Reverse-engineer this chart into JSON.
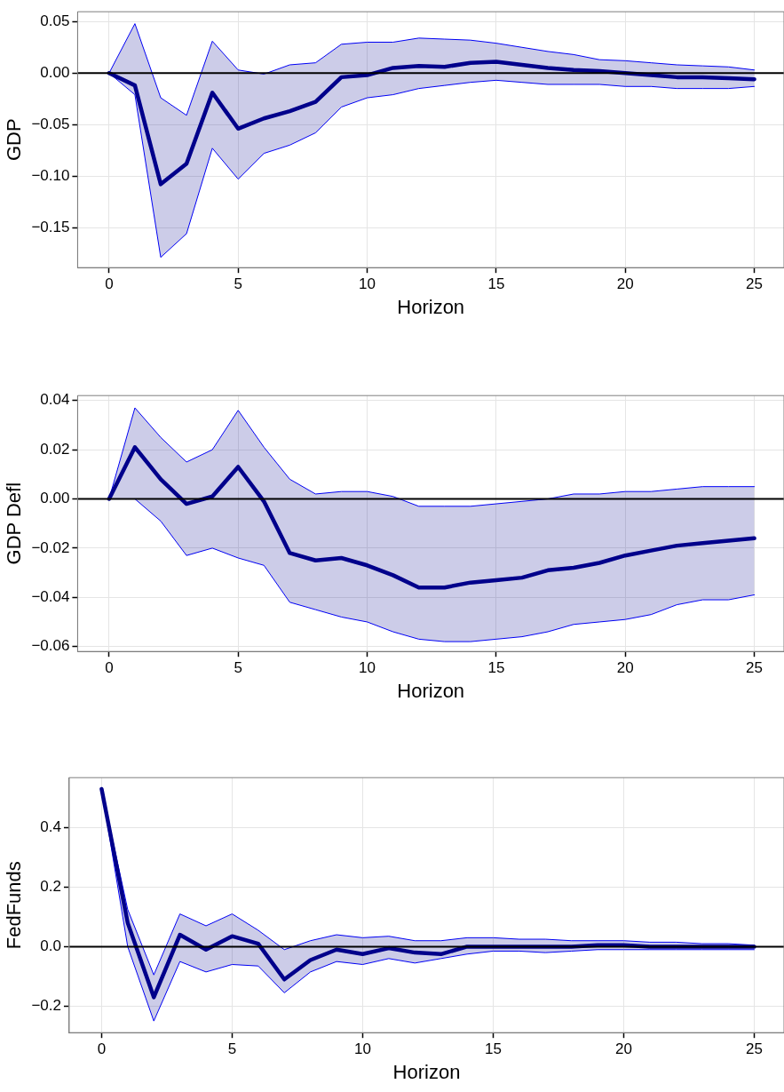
{
  "chart_data": [
    {
      "type": "line",
      "xlabel": "Horizon",
      "ylabel": "GDP",
      "x": [
        0,
        1,
        2,
        3,
        4,
        5,
        6,
        7,
        8,
        9,
        10,
        11,
        12,
        13,
        14,
        15,
        16,
        17,
        18,
        19,
        20,
        21,
        22,
        23,
        24,
        25
      ],
      "xlim": [
        -1.22,
        26.15
      ],
      "xticks": [
        0,
        5,
        10,
        15,
        20,
        25
      ],
      "ylim": [
        -0.189,
        0.0596
      ],
      "yticks": [
        {
          "value": 0.05,
          "label": "0.05"
        },
        {
          "value": 0,
          "label": "0.00"
        },
        {
          "value": -0.05,
          "label": "−0.05"
        },
        {
          "value": -0.1,
          "label": "−0.10"
        },
        {
          "value": -0.15,
          "label": "−0.15"
        }
      ],
      "grid": true,
      "legend": false,
      "ref_lines": [
        {
          "axis": "y",
          "value": 0,
          "color": "#000000"
        }
      ],
      "series": [
        {
          "color": "#00008b",
          "values": [
            0,
            -0.012,
            -0.108,
            -0.088,
            -0.019,
            -0.054,
            -0.044,
            -0.037,
            -0.028,
            -0.004,
            -0.002,
            0.005,
            0.007,
            0.006,
            0.01,
            0.011,
            0.008,
            0.005,
            0.003,
            0.002,
            0.0,
            -0.002,
            -0.004,
            -0.004,
            -0.005,
            -0.006
          ],
          "lower": [
            0,
            -0.021,
            -0.179,
            -0.156,
            -0.073,
            -0.103,
            -0.078,
            -0.07,
            -0.058,
            -0.033,
            -0.024,
            -0.021,
            -0.015,
            -0.012,
            -0.009,
            -0.007,
            -0.009,
            -0.011,
            -0.011,
            -0.011,
            -0.013,
            -0.013,
            -0.015,
            -0.015,
            -0.015,
            -0.013
          ],
          "upper": [
            0,
            0.048,
            -0.024,
            -0.041,
            0.031,
            0.003,
            -0.001,
            0.008,
            0.01,
            0.028,
            0.03,
            0.03,
            0.034,
            0.033,
            0.032,
            0.029,
            0.025,
            0.021,
            0.018,
            0.013,
            0.012,
            0.01,
            0.008,
            0.007,
            0.006,
            0.003
          ]
        },
        {
          "color": "#0000ff",
          "values": [
            0,
            -0.021,
            -0.179,
            -0.156,
            -0.073,
            -0.103,
            -0.078,
            -0.07,
            -0.058,
            -0.033,
            -0.024,
            -0.021,
            -0.015,
            -0.012,
            -0.009,
            -0.007,
            -0.009,
            -0.011,
            -0.011,
            -0.011,
            -0.013,
            -0.013,
            -0.015,
            -0.015,
            -0.015,
            -0.013
          ]
        },
        {
          "color": "#0000ff",
          "values": [
            0,
            0.048,
            -0.024,
            -0.041,
            0.031,
            0.003,
            -0.001,
            0.008,
            0.01,
            0.028,
            0.03,
            0.03,
            0.034,
            0.033,
            0.032,
            0.029,
            0.025,
            0.021,
            0.018,
            0.013,
            0.012,
            0.01,
            0.008,
            0.007,
            0.006,
            0.003
          ]
        }
      ]
    },
    {
      "type": "line",
      "xlabel": "Horizon",
      "ylabel": "GDP Defl",
      "x": [
        0,
        1,
        2,
        3,
        4,
        5,
        6,
        7,
        8,
        9,
        10,
        11,
        12,
        13,
        14,
        15,
        16,
        17,
        18,
        19,
        20,
        21,
        22,
        23,
        24,
        25
      ],
      "xlim": [
        -1.22,
        26.15
      ],
      "xticks": [
        0,
        5,
        10,
        15,
        20,
        25
      ],
      "ylim": [
        -0.062,
        0.042
      ],
      "yticks": [
        {
          "value": 0.04,
          "label": "0.04"
        },
        {
          "value": 0.02,
          "label": "0.02"
        },
        {
          "value": 0,
          "label": "0.00"
        },
        {
          "value": -0.02,
          "label": "−0.02"
        },
        {
          "value": -0.04,
          "label": "−0.04"
        },
        {
          "value": -0.06,
          "label": "−0.06"
        }
      ],
      "grid": true,
      "legend": false,
      "ref_lines": [
        {
          "axis": "y",
          "value": 0,
          "color": "#000000"
        }
      ],
      "series": [
        {
          "color": "#00008b",
          "values": [
            0,
            0.021,
            0.008,
            -0.002,
            0.001,
            0.013,
            -0.001,
            -0.022,
            -0.025,
            -0.024,
            -0.027,
            -0.031,
            -0.036,
            -0.036,
            -0.034,
            -0.033,
            -0.032,
            -0.029,
            -0.028,
            -0.026,
            -0.023,
            -0.021,
            -0.019,
            -0.018,
            -0.017,
            -0.016
          ],
          "lower": [
            0,
            0,
            -0.009,
            -0.023,
            -0.02,
            -0.024,
            -0.027,
            -0.042,
            -0.045,
            -0.048,
            -0.05,
            -0.054,
            -0.057,
            -0.058,
            -0.058,
            -0.057,
            -0.056,
            -0.054,
            -0.051,
            -0.05,
            -0.049,
            -0.047,
            -0.043,
            -0.041,
            -0.041,
            -0.039
          ],
          "upper": [
            0,
            0.037,
            0.025,
            0.015,
            0.02,
            0.036,
            0.021,
            0.008,
            0.002,
            0.003,
            0.003,
            0.001,
            -0.003,
            -0.003,
            -0.003,
            -0.002,
            -0.001,
            0.0,
            0.002,
            0.002,
            0.003,
            0.003,
            0.004,
            0.005,
            0.005,
            0.005
          ]
        },
        {
          "color": "#0000ff",
          "values": [
            0,
            0,
            -0.009,
            -0.023,
            -0.02,
            -0.024,
            -0.027,
            -0.042,
            -0.045,
            -0.048,
            -0.05,
            -0.054,
            -0.057,
            -0.058,
            -0.058,
            -0.057,
            -0.056,
            -0.054,
            -0.051,
            -0.05,
            -0.049,
            -0.047,
            -0.043,
            -0.041,
            -0.041,
            -0.039
          ]
        },
        {
          "color": "#0000ff",
          "values": [
            0,
            0.037,
            0.025,
            0.015,
            0.02,
            0.036,
            0.021,
            0.008,
            0.002,
            0.003,
            0.003,
            0.001,
            -0.003,
            -0.003,
            -0.003,
            -0.002,
            -0.001,
            0.0,
            0.002,
            0.002,
            0.003,
            0.003,
            0.004,
            0.005,
            0.005,
            0.005
          ]
        }
      ]
    },
    {
      "type": "line",
      "xlabel": "Horizon",
      "ylabel": "FedFunds",
      "x": [
        0,
        1,
        2,
        3,
        4,
        5,
        6,
        7,
        8,
        9,
        10,
        11,
        12,
        13,
        14,
        15,
        16,
        17,
        18,
        19,
        20,
        21,
        22,
        23,
        24,
        25
      ],
      "xlim": [
        -1.24,
        26.14
      ],
      "xticks": [
        0,
        5,
        10,
        15,
        20,
        25
      ],
      "ylim": [
        -0.289,
        0.568
      ],
      "yticks": [
        {
          "value": 0.4,
          "label": "0.4"
        },
        {
          "value": 0.2,
          "label": "0.2"
        },
        {
          "value": 0,
          "label": "0.0"
        },
        {
          "value": -0.2,
          "label": "−0.2"
        }
      ],
      "grid": true,
      "legend": false,
      "ref_lines": [
        {
          "axis": "y",
          "value": 0,
          "color": "#000000"
        }
      ],
      "series": [
        {
          "color": "#00008b",
          "values": [
            0.53,
            0.08,
            -0.17,
            0.04,
            -0.01,
            0.035,
            0.01,
            -0.11,
            -0.045,
            -0.01,
            -0.025,
            -0.005,
            -0.02,
            -0.025,
            0,
            0,
            0,
            0,
            0,
            0.005,
            0.005,
            0,
            0,
            0,
            0,
            0
          ],
          "lower": [
            0.53,
            0,
            -0.25,
            -0.05,
            -0.085,
            -0.06,
            -0.065,
            -0.155,
            -0.085,
            -0.05,
            -0.06,
            -0.04,
            -0.055,
            -0.04,
            -0.025,
            -0.015,
            -0.015,
            -0.02,
            -0.015,
            -0.01,
            -0.01,
            -0.01,
            -0.01,
            -0.01,
            -0.01,
            -0.01
          ],
          "upper": [
            0.53,
            0.125,
            -0.095,
            0.11,
            0.07,
            0.11,
            0.055,
            -0.01,
            0.02,
            0.04,
            0.03,
            0.035,
            0.02,
            0.02,
            0.03,
            0.03,
            0.025,
            0.025,
            0.02,
            0.02,
            0.02,
            0.015,
            0.015,
            0.01,
            0.01,
            0.005
          ]
        },
        {
          "color": "#0000ff",
          "values": [
            0.53,
            0,
            -0.25,
            -0.05,
            -0.085,
            -0.06,
            -0.065,
            -0.155,
            -0.085,
            -0.05,
            -0.06,
            -0.04,
            -0.055,
            -0.04,
            -0.025,
            -0.015,
            -0.015,
            -0.02,
            -0.015,
            -0.01,
            -0.01,
            -0.01,
            -0.01,
            -0.01,
            -0.01,
            -0.01
          ]
        },
        {
          "color": "#0000ff",
          "values": [
            0.53,
            0.125,
            -0.095,
            0.11,
            0.07,
            0.11,
            0.055,
            -0.01,
            0.02,
            0.04,
            0.03,
            0.035,
            0.02,
            0.02,
            0.03,
            0.03,
            0.025,
            0.025,
            0.02,
            0.02,
            0.02,
            0.015,
            0.015,
            0.01,
            0.01,
            0.005
          ]
        }
      ]
    }
  ]
}
